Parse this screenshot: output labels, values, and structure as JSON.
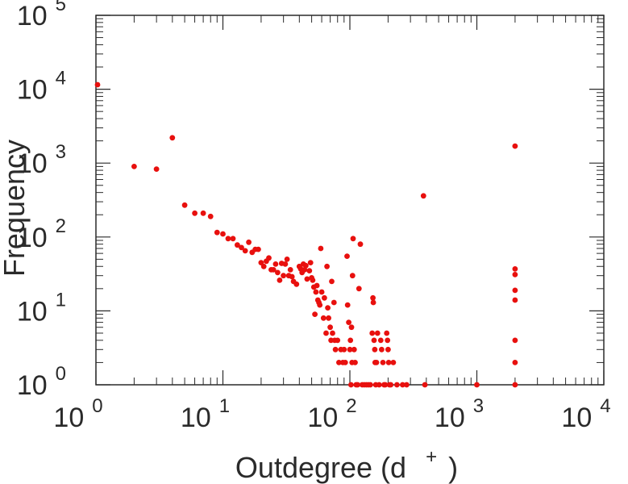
{
  "chart_data": {
    "type": "scatter",
    "title": "",
    "xlabel": "Outdegree (d",
    "xlabel_sup": "+",
    "xlabel_close": ")",
    "ylabel": "Frequency",
    "x_scale": "log",
    "y_scale": "log",
    "xlim": [
      1,
      10000
    ],
    "ylim": [
      1,
      100000
    ],
    "grid": false,
    "legend": "none",
    "x_ticks": [
      {
        "value": 1,
        "base": "10",
        "exp": "0"
      },
      {
        "value": 10,
        "base": "10",
        "exp": "1"
      },
      {
        "value": 100,
        "base": "10",
        "exp": "2"
      },
      {
        "value": 1000,
        "base": "10",
        "exp": "3"
      },
      {
        "value": 10000,
        "base": "10",
        "exp": "4"
      }
    ],
    "y_ticks": [
      {
        "value": 1,
        "base": "10",
        "exp": "0"
      },
      {
        "value": 10,
        "base": "10",
        "exp": "1"
      },
      {
        "value": 100,
        "base": "10",
        "exp": "2"
      },
      {
        "value": 1000,
        "base": "10",
        "exp": "3"
      },
      {
        "value": 10000,
        "base": "10",
        "exp": "4"
      },
      {
        "value": 100000,
        "base": "10",
        "exp": "5"
      }
    ],
    "marker_color": "#e8100e",
    "axis_color": "#2a2a2a",
    "points": [
      [
        1.03,
        11500
      ],
      [
        2,
        900
      ],
      [
        3,
        830
      ],
      [
        4,
        2200
      ],
      [
        5,
        270
      ],
      [
        6,
        210
      ],
      [
        7,
        210
      ],
      [
        8,
        190
      ],
      [
        9,
        115
      ],
      [
        10,
        110
      ],
      [
        11,
        95
      ],
      [
        12,
        95
      ],
      [
        13,
        78
      ],
      [
        14,
        72
      ],
      [
        15,
        65
      ],
      [
        16,
        85
      ],
      [
        17,
        62
      ],
      [
        18,
        68
      ],
      [
        19,
        68
      ],
      [
        20,
        45
      ],
      [
        21,
        40
      ],
      [
        22,
        47
      ],
      [
        23,
        52
      ],
      [
        24,
        36
      ],
      [
        25,
        36
      ],
      [
        26,
        43
      ],
      [
        27,
        33
      ],
      [
        28,
        26
      ],
      [
        29,
        44
      ],
      [
        30,
        30
      ],
      [
        31,
        43
      ],
      [
        32,
        50
      ],
      [
        33,
        30
      ],
      [
        34,
        36
      ],
      [
        35,
        29
      ],
      [
        36,
        25
      ],
      [
        38,
        23
      ],
      [
        40,
        40
      ],
      [
        41,
        37
      ],
      [
        42,
        33
      ],
      [
        43,
        43
      ],
      [
        44,
        36
      ],
      [
        45,
        41
      ],
      [
        46,
        27
      ],
      [
        48,
        35
      ],
      [
        49,
        45
      ],
      [
        50,
        28
      ],
      [
        51,
        26
      ],
      [
        52,
        21
      ],
      [
        53,
        9
      ],
      [
        54,
        18
      ],
      [
        55,
        22
      ],
      [
        56,
        14
      ],
      [
        57,
        13
      ],
      [
        58,
        12
      ],
      [
        59,
        70
      ],
      [
        60,
        18
      ],
      [
        62,
        8
      ],
      [
        63,
        15
      ],
      [
        65,
        5
      ],
      [
        66,
        40
      ],
      [
        67,
        11
      ],
      [
        68,
        8
      ],
      [
        70,
        6
      ],
      [
        71,
        4
      ],
      [
        72,
        25
      ],
      [
        73,
        5
      ],
      [
        75,
        13
      ],
      [
        76,
        4
      ],
      [
        77,
        3
      ],
      [
        80,
        4
      ],
      [
        82,
        2
      ],
      [
        85,
        3
      ],
      [
        88,
        2
      ],
      [
        90,
        3
      ],
      [
        92,
        2
      ],
      [
        95,
        55
      ],
      [
        96,
        12
      ],
      [
        98,
        7
      ],
      [
        100,
        3
      ],
      [
        101,
        4
      ],
      [
        102,
        1
      ],
      [
        103,
        6
      ],
      [
        104,
        2
      ],
      [
        105,
        30
      ],
      [
        106,
        95
      ],
      [
        108,
        3
      ],
      [
        110,
        2
      ],
      [
        112,
        1
      ],
      [
        115,
        1
      ],
      [
        118,
        20
      ],
      [
        121,
        80
      ],
      [
        125,
        1
      ],
      [
        130,
        1
      ],
      [
        135,
        1
      ],
      [
        140,
        1
      ],
      [
        145,
        1
      ],
      [
        150,
        5
      ],
      [
        152,
        15
      ],
      [
        153,
        13
      ],
      [
        155,
        4
      ],
      [
        157,
        3
      ],
      [
        158,
        2
      ],
      [
        160,
        1
      ],
      [
        162,
        2
      ],
      [
        165,
        5
      ],
      [
        170,
        1
      ],
      [
        175,
        4
      ],
      [
        178,
        3
      ],
      [
        182,
        2
      ],
      [
        186,
        1
      ],
      [
        190,
        1
      ],
      [
        195,
        5
      ],
      [
        198,
        4
      ],
      [
        200,
        3
      ],
      [
        202,
        2
      ],
      [
        205,
        1
      ],
      [
        210,
        1
      ],
      [
        220,
        2
      ],
      [
        235,
        1
      ],
      [
        260,
        1
      ],
      [
        280,
        1
      ],
      [
        380,
        360
      ],
      [
        390,
        1
      ],
      [
        1000,
        1
      ],
      [
        2000,
        1700
      ],
      [
        2000,
        37
      ],
      [
        2000,
        31
      ],
      [
        2000,
        19
      ],
      [
        2000,
        14
      ],
      [
        2000,
        4
      ],
      [
        2000,
        2
      ],
      [
        2000,
        1
      ]
    ]
  }
}
